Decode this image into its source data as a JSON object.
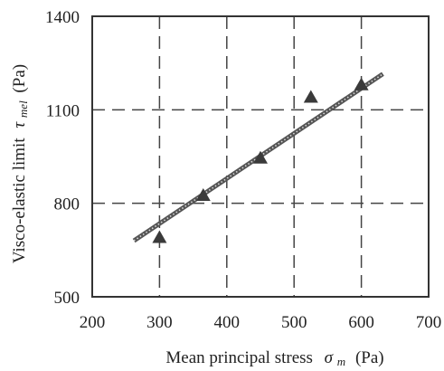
{
  "chart_data": {
    "type": "scatter",
    "x": [
      300,
      365,
      450,
      525,
      600
    ],
    "y": [
      690,
      825,
      945,
      1140,
      1180
    ],
    "fit_line": {
      "x": [
        262,
        632
      ],
      "y": [
        680,
        1215
      ]
    },
    "xlim": [
      200,
      700
    ],
    "ylim": [
      500,
      1400
    ],
    "xticks": [
      200,
      300,
      400,
      500,
      600,
      700
    ],
    "yticks": [
      500,
      800,
      1100,
      1400
    ],
    "xtick_labels": [
      "200",
      "300",
      "400",
      "500",
      "600",
      "700"
    ],
    "ytick_labels": [
      "500",
      "800",
      "1100",
      "1400"
    ],
    "xlabel": {
      "text": "Mean principal stress",
      "symbol": "σ",
      "subscript": "m",
      "unit": "(Pa)"
    },
    "ylabel": {
      "text": "Visco-elastic limit",
      "symbol": "τ",
      "subscript": "mel",
      "unit": "(Pa)"
    },
    "grid": true,
    "grid_style": "dashed",
    "marker": "triangle",
    "colors": {
      "marker": "#3a3a3a",
      "fit_line": "#555555",
      "grid": "#444444",
      "frame": "#333333",
      "text": "#222222"
    }
  }
}
